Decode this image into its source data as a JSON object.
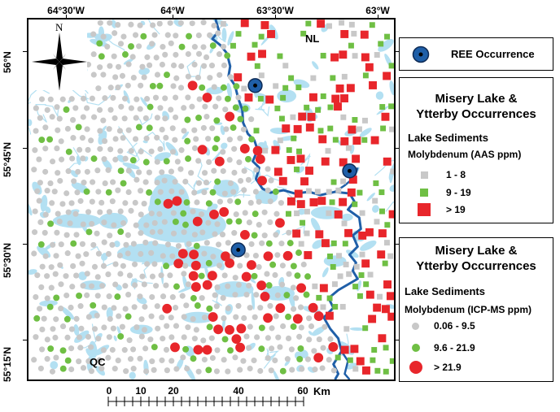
{
  "coords": {
    "top": [
      "64°30'W",
      "64°W",
      "63°30'W",
      "63°W"
    ],
    "left": [
      "56°N",
      "55°45'N",
      "55°30'N",
      "55°15'N"
    ]
  },
  "places": {
    "nl": "NL",
    "qc": "QC"
  },
  "compass": {
    "north": "N",
    "icon": "compass-rose-icon"
  },
  "legend_ree": {
    "label": "REE Occurrence",
    "color": "#1f5fa8"
  },
  "legend_aas": {
    "title_line1": "Misery Lake &",
    "title_line2": "Ytterby Occurrences",
    "subtitle": "Lake Sediments",
    "element": "Molybdenum (AAS ppm)",
    "classes": [
      {
        "label": "1 - 8",
        "color": "#c8c8c8"
      },
      {
        "label": "9 - 19",
        "color": "#6fbf44"
      },
      {
        "label": "> 19",
        "color": "#e8262b"
      }
    ]
  },
  "legend_icp": {
    "title_line1": "Misery Lake &",
    "title_line2": "Ytterby Occurrences",
    "subtitle": "Lake Sediments",
    "element": "Molybdenum (ICP-MS ppm)",
    "classes": [
      {
        "label": "0.06 - 9.5",
        "color": "#c8c8c8"
      },
      {
        "label": "9.6 - 21.9",
        "color": "#6fbf44"
      },
      {
        "label": "> 21.9",
        "color": "#e8262b"
      }
    ]
  },
  "scale": {
    "labels": [
      "0",
      "10",
      "20",
      "40",
      "60"
    ],
    "unit": "Km"
  },
  "colors": {
    "water": "#b3e0f2",
    "border": "#1f5fa8"
  }
}
